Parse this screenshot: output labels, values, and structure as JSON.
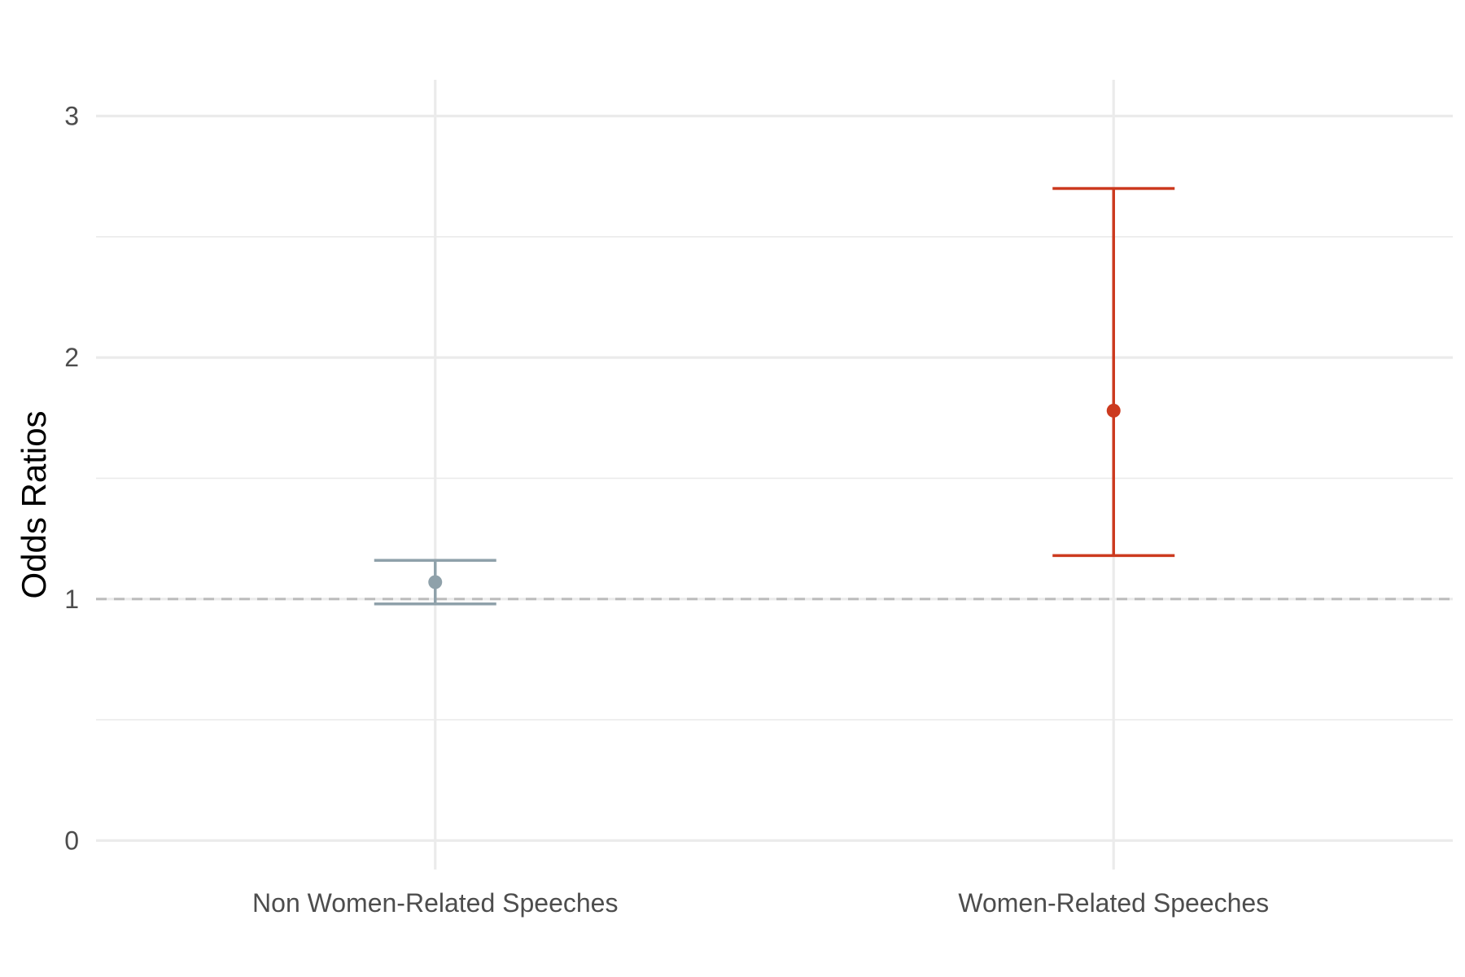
{
  "chart_data": {
    "type": "errorbar",
    "title": "",
    "xlabel": "",
    "ylabel": "Odds Ratios",
    "categories": [
      "Non Women-Related Speeches",
      "Women-Related Speeches"
    ],
    "points": [
      {
        "category": "Non Women-Related Speeches",
        "estimate": 1.07,
        "lower": 0.98,
        "upper": 1.16,
        "color": "#8fa1aa"
      },
      {
        "category": "Women-Related Speeches",
        "estimate": 1.78,
        "lower": 1.18,
        "upper": 2.7,
        "color": "#cc3a1f"
      }
    ],
    "ylim": [
      -0.12,
      3.15
    ],
    "yticks": [
      0,
      1,
      2,
      3
    ],
    "ytick_labels": [
      "0",
      "1",
      "2",
      "3"
    ],
    "y_minor_ticks": [
      0.5,
      1.5,
      2.5
    ],
    "reference_line": {
      "y": 1,
      "style": "dashed",
      "color": "#bdbdbd"
    },
    "grid": true,
    "legend": "none",
    "grid_color": "#ebebeb"
  }
}
